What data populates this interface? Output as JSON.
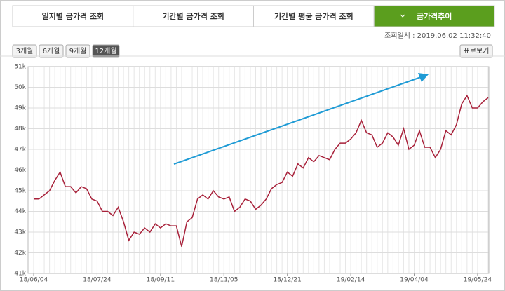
{
  "tabs": [
    "일지별 금가격 조회",
    "기간별 금가격 조회",
    "기간별 평균 금가격 조회",
    "금가격추이"
  ],
  "active_tab": 3,
  "timestamp": "조회일시 : 2019.06.02 11:32:40",
  "period_buttons": [
    "3개월",
    "6개월",
    "9개월",
    "12개월"
  ],
  "active_period": 3,
  "table_button": "표로보기",
  "chart_data": {
    "type": "line",
    "x": [
      "18/06/04",
      null,
      null,
      null,
      null,
      null,
      null,
      null,
      null,
      null,
      null,
      null,
      "18/07/24",
      null,
      null,
      null,
      null,
      null,
      null,
      null,
      null,
      null,
      null,
      null,
      "18/09/11",
      null,
      null,
      null,
      null,
      null,
      null,
      null,
      null,
      null,
      null,
      null,
      "18/11/05",
      null,
      null,
      null,
      null,
      null,
      null,
      null,
      null,
      null,
      null,
      null,
      "18/12/21",
      null,
      null,
      null,
      null,
      null,
      null,
      null,
      null,
      null,
      null,
      null,
      "19/02/14",
      null,
      null,
      null,
      null,
      null,
      null,
      null,
      null,
      null,
      null,
      null,
      "19/04/04",
      null,
      null,
      null,
      null,
      null,
      null,
      null,
      null,
      null,
      null,
      null,
      "19/05/24",
      null,
      null
    ],
    "series": [
      {
        "color": "#a8213a",
        "values": [
          44.6,
          44.6,
          44.8,
          45.0,
          45.5,
          45.9,
          45.2,
          45.2,
          44.9,
          45.2,
          45.1,
          44.6,
          44.5,
          44.0,
          44.0,
          43.8,
          44.2,
          43.5,
          42.6,
          43.0,
          42.9,
          43.2,
          43.0,
          43.4,
          43.2,
          43.4,
          43.3,
          43.3,
          42.3,
          43.5,
          43.7,
          44.6,
          44.8,
          44.6,
          45.0,
          44.7,
          44.6,
          44.7,
          44.0,
          44.2,
          44.6,
          44.5,
          44.1,
          44.3,
          44.6,
          45.1,
          45.3,
          45.4,
          45.9,
          45.7,
          46.3,
          46.1,
          46.6,
          46.4,
          46.7,
          46.6,
          46.5,
          47.0,
          47.3,
          47.3,
          47.5,
          47.8,
          48.4,
          47.8,
          47.7,
          47.1,
          47.3,
          47.8,
          47.6,
          47.2,
          48.0,
          47.0,
          47.2,
          47.9,
          47.1,
          47.1,
          46.6,
          47.0,
          47.9,
          47.7,
          48.2,
          49.2,
          49.6,
          49.0,
          49.0,
          49.3,
          49.5
        ]
      }
    ],
    "ylim": [
      41,
      51
    ],
    "yticks": [
      {
        "value": 41,
        "label": "41k"
      },
      {
        "value": 42,
        "label": "42k"
      },
      {
        "value": 43,
        "label": "43k"
      },
      {
        "value": 44,
        "label": "44k"
      },
      {
        "value": 45,
        "label": "45k"
      },
      {
        "value": 46,
        "label": "46k"
      },
      {
        "value": 47,
        "label": "47k"
      },
      {
        "value": 48,
        "label": "48k"
      },
      {
        "value": 49,
        "label": "49k"
      },
      {
        "value": 50,
        "label": "50k"
      },
      {
        "value": 51,
        "label": "51k"
      }
    ],
    "grid": true
  }
}
